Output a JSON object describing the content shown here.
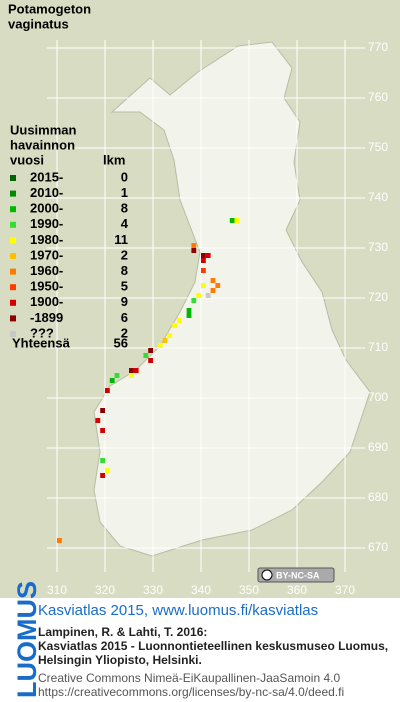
{
  "title_lines": [
    "Potamogeton",
    "vaginatus"
  ],
  "legend": {
    "heading_lines": [
      "Uusimman",
      "havainnon",
      "vuosi"
    ],
    "count_heading": "lkm",
    "items": [
      {
        "label": "2015-",
        "count": 0,
        "color": "#006400"
      },
      {
        "label": "2010-",
        "count": 1,
        "color": "#008a00"
      },
      {
        "label": "2000-",
        "count": 8,
        "color": "#00b800"
      },
      {
        "label": "1990-",
        "count": 4,
        "color": "#33dd33"
      },
      {
        "label": "1980-",
        "count": 11,
        "color": "#ffff00"
      },
      {
        "label": "1970-",
        "count": 2,
        "color": "#ffc000"
      },
      {
        "label": "1960-",
        "count": 8,
        "color": "#ff7a00"
      },
      {
        "label": "1950-",
        "count": 5,
        "color": "#ff3a00"
      },
      {
        "label": "1900-",
        "count": 9,
        "color": "#d40000"
      },
      {
        "label": "-1899",
        "count": 6,
        "color": "#8b0000"
      },
      {
        "label": "???",
        "count": 2,
        "color": "#c8c8c8"
      }
    ],
    "total_label": "Yhteensä",
    "total": 56
  },
  "grid": {
    "xlim": [
      310,
      370
    ],
    "ylim": [
      670,
      770
    ],
    "xticks": [
      310,
      320,
      330,
      340,
      350,
      360,
      370
    ],
    "yticks": [
      770,
      760,
      750,
      740,
      730,
      720,
      710,
      700,
      690,
      680,
      670
    ]
  },
  "observations": [
    {
      "x": 346,
      "y": 735,
      "period": "2000-"
    },
    {
      "x": 347,
      "y": 735,
      "period": "1980-"
    },
    {
      "x": 338,
      "y": 730,
      "period": "1960-"
    },
    {
      "x": 338,
      "y": 729,
      "period": "-1899"
    },
    {
      "x": 340,
      "y": 728,
      "period": "-1899"
    },
    {
      "x": 341,
      "y": 728,
      "period": "1900-"
    },
    {
      "x": 340,
      "y": 727,
      "period": "1900-"
    },
    {
      "x": 340,
      "y": 725,
      "period": "1950-"
    },
    {
      "x": 342,
      "y": 723,
      "period": "1960-"
    },
    {
      "x": 343,
      "y": 722,
      "period": "1960-"
    },
    {
      "x": 342,
      "y": 721,
      "period": "1960-"
    },
    {
      "x": 340,
      "y": 722,
      "period": "1980-"
    },
    {
      "x": 339,
      "y": 720,
      "period": "1980-"
    },
    {
      "x": 341,
      "y": 720,
      "period": "???"
    },
    {
      "x": 338,
      "y": 719,
      "period": "1990-"
    },
    {
      "x": 337,
      "y": 717,
      "period": "2000-"
    },
    {
      "x": 337,
      "y": 716,
      "period": "2000-"
    },
    {
      "x": 335,
      "y": 715,
      "period": "1980-"
    },
    {
      "x": 334,
      "y": 714,
      "period": "1980-"
    },
    {
      "x": 333,
      "y": 712,
      "period": "1980-"
    },
    {
      "x": 332,
      "y": 711,
      "period": "1970-"
    },
    {
      "x": 331,
      "y": 710,
      "period": "1980-"
    },
    {
      "x": 329,
      "y": 709,
      "period": "-1899"
    },
    {
      "x": 328,
      "y": 708,
      "period": "1990-"
    },
    {
      "x": 329,
      "y": 707,
      "period": "1900-"
    },
    {
      "x": 326,
      "y": 705,
      "period": "1900-"
    },
    {
      "x": 325,
      "y": 705,
      "period": "-1899"
    },
    {
      "x": 325,
      "y": 704,
      "period": "1980-"
    },
    {
      "x": 322,
      "y": 704,
      "period": "1990-"
    },
    {
      "x": 321,
      "y": 703,
      "period": "2000-"
    },
    {
      "x": 320,
      "y": 701,
      "period": "1900-"
    },
    {
      "x": 319,
      "y": 697,
      "period": "-1899"
    },
    {
      "x": 318,
      "y": 695,
      "period": "1900-"
    },
    {
      "x": 319,
      "y": 693,
      "period": "1900-"
    },
    {
      "x": 319,
      "y": 687,
      "period": "1990-"
    },
    {
      "x": 320,
      "y": 685,
      "period": "1980-"
    },
    {
      "x": 319,
      "y": 684,
      "period": "1900-"
    },
    {
      "x": 310,
      "y": 671,
      "period": "1960-"
    }
  ],
  "cc_badge": "BY-NC-SA",
  "brand": "LUOMUS",
  "source": "Kasviatlas 2015, www.luomus.fi/kasviatlas",
  "citation_lines": [
    "Lampinen, R. & Lahti, T. 2016:",
    "Kasviatlas 2015 - Luonnontieteellinen keskusmuseo Luomus,",
    "Helsingin Yliopisto, Helsinki."
  ],
  "license_lines": [
    "Creative Commons Nimeä-EiKaupallinen-JaaSamoin 4.0",
    "https://creativecommons.org/licenses/by-nc-sa/4.0/deed.fi"
  ]
}
